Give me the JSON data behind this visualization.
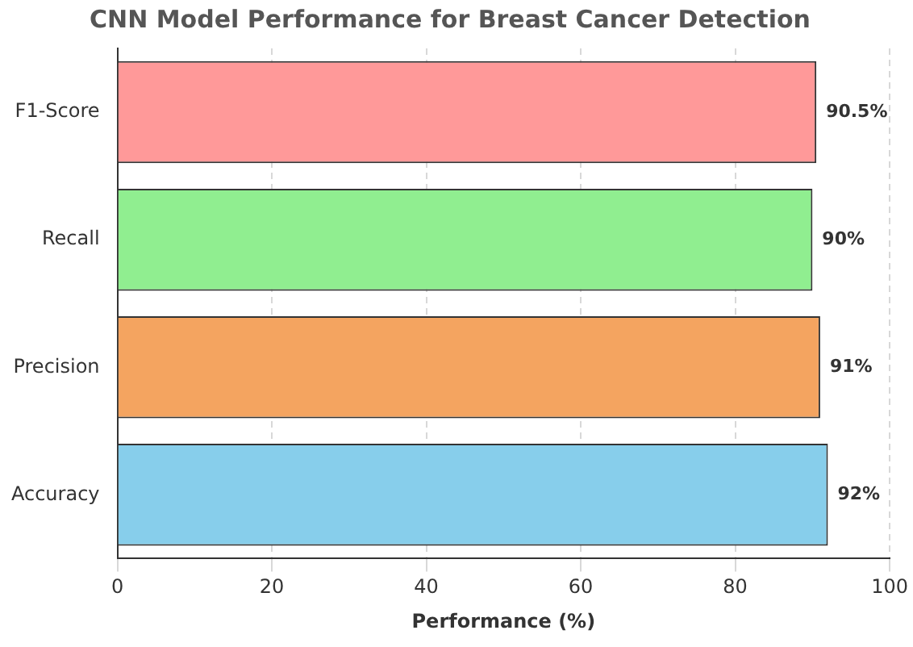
{
  "chart_data": {
    "type": "bar",
    "orientation": "horizontal",
    "title": "CNN Model Performance for Breast Cancer Detection",
    "xlabel": "Performance (%)",
    "categories": [
      "F1-Score",
      "Recall",
      "Precision",
      "Accuracy"
    ],
    "values": [
      90.5,
      90,
      91,
      92
    ],
    "colors": [
      "#ff9999",
      "#90ee90",
      "#f4a460",
      "#87ceeb"
    ],
    "value_labels": [
      "90.5%",
      "90%",
      "91%",
      "92%"
    ],
    "xlim": [
      0,
      100
    ],
    "xticks": [
      0,
      20,
      40,
      60,
      80,
      100
    ],
    "grid": "x"
  }
}
